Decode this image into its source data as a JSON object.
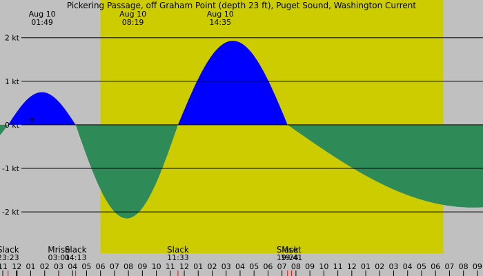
{
  "chart_data": {
    "type": "area",
    "title": "Pickering Passage, off Graham Point (depth 23 ft), Puget Sound, Washington Current",
    "unit": "kt",
    "y_ticks": [
      {
        "value": 2,
        "label": "2 kt"
      },
      {
        "value": 1,
        "label": "1 kt"
      },
      {
        "value": 0,
        "label": "0 kt"
      },
      {
        "value": -1,
        "label": "-1 kt"
      },
      {
        "value": -2,
        "label": "-2 kt"
      }
    ],
    "ylim": [
      -2.95,
      2.55
    ],
    "x_range_hours": [
      -1.2,
      33.4
    ],
    "daylight": {
      "from": 6.0,
      "to": 30.55
    },
    "x_ticks": [
      {
        "t": -1,
        "label": "11"
      },
      {
        "t": 0,
        "label": "12"
      },
      {
        "t": 1,
        "label": "01"
      },
      {
        "t": 2,
        "label": "02"
      },
      {
        "t": 3,
        "label": "03"
      },
      {
        "t": 4,
        "label": "04"
      },
      {
        "t": 5,
        "label": "05"
      },
      {
        "t": 6,
        "label": "06"
      },
      {
        "t": 7,
        "label": "07"
      },
      {
        "t": 8,
        "label": "08"
      },
      {
        "t": 9,
        "label": "09"
      },
      {
        "t": 10,
        "label": "10"
      },
      {
        "t": 11,
        "label": "11"
      },
      {
        "t": 12,
        "label": "12"
      },
      {
        "t": 13,
        "label": "01"
      },
      {
        "t": 14,
        "label": "02"
      },
      {
        "t": 15,
        "label": "03"
      },
      {
        "t": 16,
        "label": "04"
      },
      {
        "t": 17,
        "label": "05"
      },
      {
        "t": 18,
        "label": "06"
      },
      {
        "t": 19,
        "label": "07"
      },
      {
        "t": 20,
        "label": "08"
      },
      {
        "t": 21,
        "label": "09"
      },
      {
        "t": 22,
        "label": "10"
      },
      {
        "t": 23,
        "label": "11"
      },
      {
        "t": 24,
        "label": "12"
      },
      {
        "t": 25,
        "label": "01"
      },
      {
        "t": 26,
        "label": "02"
      },
      {
        "t": 27,
        "label": "03"
      },
      {
        "t": 28,
        "label": "04"
      },
      {
        "t": 29,
        "label": "05"
      },
      {
        "t": 30,
        "label": "06"
      },
      {
        "t": 31,
        "label": "07"
      },
      {
        "t": 32,
        "label": "08"
      },
      {
        "t": 33,
        "label": "09"
      }
    ],
    "peaks": [
      {
        "time": "01:49",
        "date": "Aug 10",
        "t": 1.82,
        "value": 0.75
      },
      {
        "time": "08:19",
        "date": "Aug 10",
        "t": 8.32,
        "value": -2.15
      },
      {
        "time": "14:35",
        "date": "Aug 10",
        "t": 14.58,
        "value": 1.93
      },
      {
        "time": "",
        "date": "",
        "t": 21.4,
        "value": -1.9
      }
    ],
    "events": [
      {
        "label": "Slack",
        "time": "23:23",
        "t": -0.62,
        "kind": "slack"
      },
      {
        "label": "Slack",
        "time": "04:13",
        "t": 4.22,
        "kind": "slack"
      },
      {
        "label": "Slack",
        "time": "11:33",
        "t": 11.55,
        "kind": "slack"
      },
      {
        "label": "Slack",
        "time": "19:24",
        "t": 19.4,
        "kind": "slack"
      },
      {
        "label": "Mrise",
        "time": "03:01",
        "t": 3.02,
        "kind": "moon"
      },
      {
        "label": "Mset",
        "time": "19:41",
        "t": 19.68,
        "kind": "moon"
      }
    ],
    "legend": "none"
  }
}
